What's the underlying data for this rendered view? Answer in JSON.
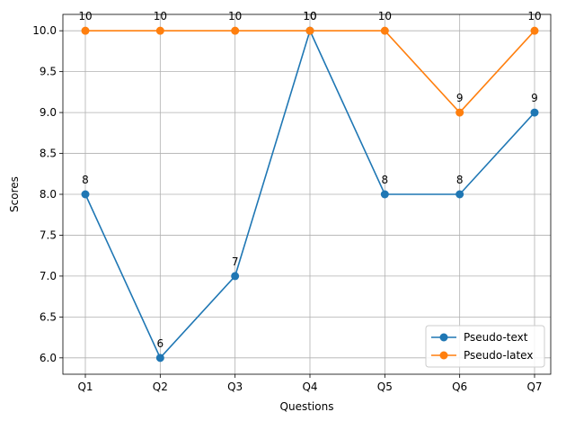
{
  "chart_data": {
    "type": "line",
    "categories": [
      "Q1",
      "Q2",
      "Q3",
      "Q4",
      "Q5",
      "Q6",
      "Q7"
    ],
    "series": [
      {
        "name": "Pseudo-text",
        "values": [
          8,
          6,
          7,
          10,
          8,
          8,
          9
        ],
        "color": "#1f77b4",
        "labels": [
          "8",
          "6",
          "7",
          "10",
          "8",
          "8",
          "9"
        ]
      },
      {
        "name": "Pseudo-latex",
        "values": [
          10,
          10,
          10,
          10,
          10,
          9,
          10
        ],
        "color": "#ff7f0e",
        "labels": [
          "10",
          "10",
          "10",
          "10",
          "10",
          "9",
          "10"
        ]
      }
    ],
    "xlabel": "Questions",
    "ylabel": "Scores",
    "ylim": [
      5.8,
      10.2
    ],
    "yticks": [
      "6.0",
      "6.5",
      "7.0",
      "7.5",
      "8.0",
      "8.5",
      "9.0",
      "9.5",
      "10.0"
    ],
    "grid": true,
    "legend_position": "lower-right"
  }
}
